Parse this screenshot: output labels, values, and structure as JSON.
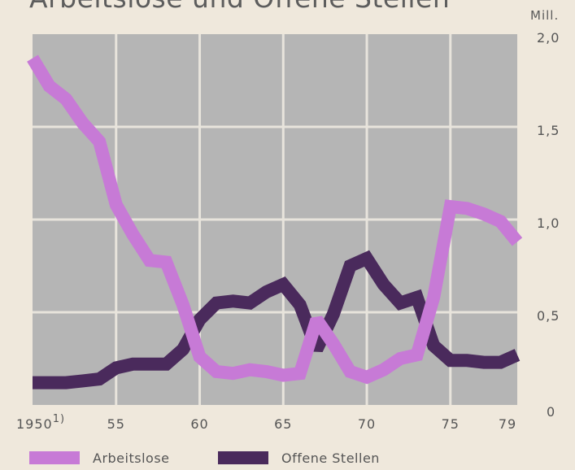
{
  "chart_data": {
    "type": "line",
    "title": "Arbeitslose und Offene Stellen",
    "unit": "Mill.",
    "x": [
      1950,
      1951,
      1952,
      1953,
      1954,
      1955,
      1956,
      1957,
      1958,
      1959,
      1960,
      1961,
      1962,
      1963,
      1964,
      1965,
      1966,
      1967,
      1968,
      1969,
      1970,
      1971,
      1972,
      1973,
      1974,
      1975,
      1976,
      1977,
      1978,
      1979
    ],
    "x_tick_values": [
      1950,
      1955,
      1960,
      1965,
      1970,
      1975,
      1979
    ],
    "x_tick_labels": [
      "1950",
      "55",
      "60",
      "65",
      "70",
      "75",
      "79"
    ],
    "x_first_footnote": "1)",
    "y_tick_values": [
      0,
      0.5,
      1.0,
      1.5,
      2.0
    ],
    "y_tick_labels": [
      "0",
      "0,5",
      "1,0",
      "1,5",
      "2,0"
    ],
    "xlim": [
      1950,
      1979
    ],
    "ylim": [
      0,
      2.0
    ],
    "grid": true,
    "series": [
      {
        "name": "Arbeitslose",
        "color": "#c77ad6",
        "values": [
          1.87,
          1.72,
          1.65,
          1.52,
          1.42,
          1.08,
          0.92,
          0.78,
          0.77,
          0.54,
          0.26,
          0.18,
          0.17,
          0.19,
          0.18,
          0.16,
          0.17,
          0.46,
          0.33,
          0.18,
          0.15,
          0.19,
          0.25,
          0.27,
          0.58,
          1.07,
          1.06,
          1.03,
          0.99,
          0.88
        ]
      },
      {
        "name": "Offene Stellen",
        "color": "#4a2a5c",
        "values": [
          0.12,
          0.12,
          0.12,
          0.13,
          0.14,
          0.2,
          0.22,
          0.22,
          0.22,
          0.3,
          0.46,
          0.55,
          0.56,
          0.55,
          0.61,
          0.65,
          0.54,
          0.3,
          0.49,
          0.75,
          0.79,
          0.65,
          0.55,
          0.58,
          0.32,
          0.24,
          0.24,
          0.23,
          0.23,
          0.27
        ]
      }
    ]
  },
  "colors": {
    "page_bg": "#efe8dc",
    "plot_bg": "#b5b5b5",
    "grid": "#e8e4dc"
  }
}
